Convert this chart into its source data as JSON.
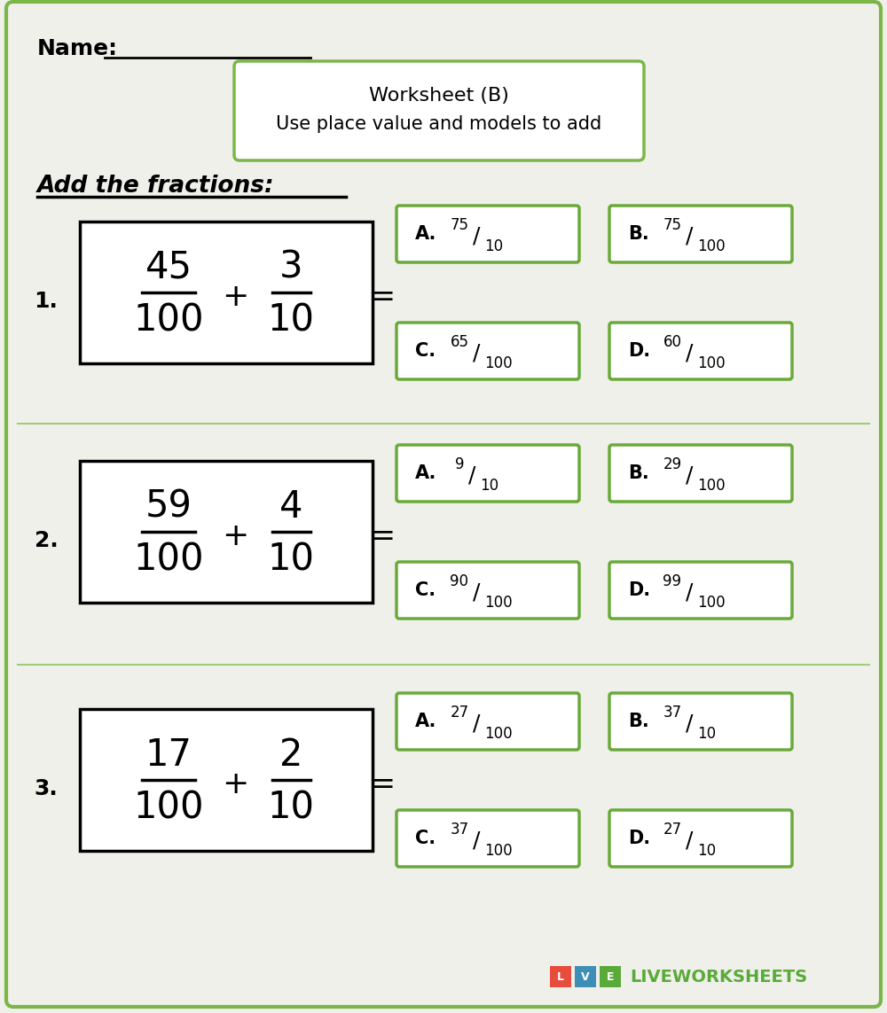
{
  "bg_color": "#f0f0eb",
  "outer_border_color": "#7ab648",
  "title_box_text1": "Worksheet (B)",
  "title_box_text2": "Use place value and models to add",
  "subtitle": "Add the fractions:",
  "name_prefix": "Name:",
  "questions": [
    {
      "number": "1.",
      "num1": "45",
      "den1": "100",
      "num2": "3",
      "den2": "10",
      "options": [
        {
          "label": "A.",
          "num": "75",
          "den": "10"
        },
        {
          "label": "B.",
          "num": "75",
          "den": "100"
        },
        {
          "label": "C.",
          "num": "65",
          "den": "100"
        },
        {
          "label": "D.",
          "num": "60",
          "den": "100"
        }
      ]
    },
    {
      "number": "2.",
      "num1": "59",
      "den1": "100",
      "num2": "4",
      "den2": "10",
      "options": [
        {
          "label": "A.",
          "num": "9",
          "den": "10"
        },
        {
          "label": "B.",
          "num": "29",
          "den": "100"
        },
        {
          "label": "C.",
          "num": "90",
          "den": "100"
        },
        {
          "label": "D.",
          "num": "99",
          "den": "100"
        }
      ]
    },
    {
      "number": "3.",
      "num1": "17",
      "den1": "100",
      "num2": "2",
      "den2": "10",
      "options": [
        {
          "label": "A.",
          "num": "27",
          "den": "100"
        },
        {
          "label": "B.",
          "num": "37",
          "den": "10"
        },
        {
          "label": "C.",
          "num": "37",
          "den": "100"
        },
        {
          "label": "D.",
          "num": "27",
          "den": "10"
        }
      ]
    }
  ],
  "lw_box_colors": [
    "#e74c3c",
    "#3d8fb5",
    "#5aaa3a"
  ],
  "lw_box_letters": [
    "L",
    "V",
    "E"
  ],
  "lw_text": "LIVEWORKSHEETS",
  "lw_text_color": "#5aaa3a",
  "option_box_color": "#6aaa3a",
  "sep_line_color": "#8dc45a",
  "question_box_color": "#000000",
  "font_color": "#000000"
}
